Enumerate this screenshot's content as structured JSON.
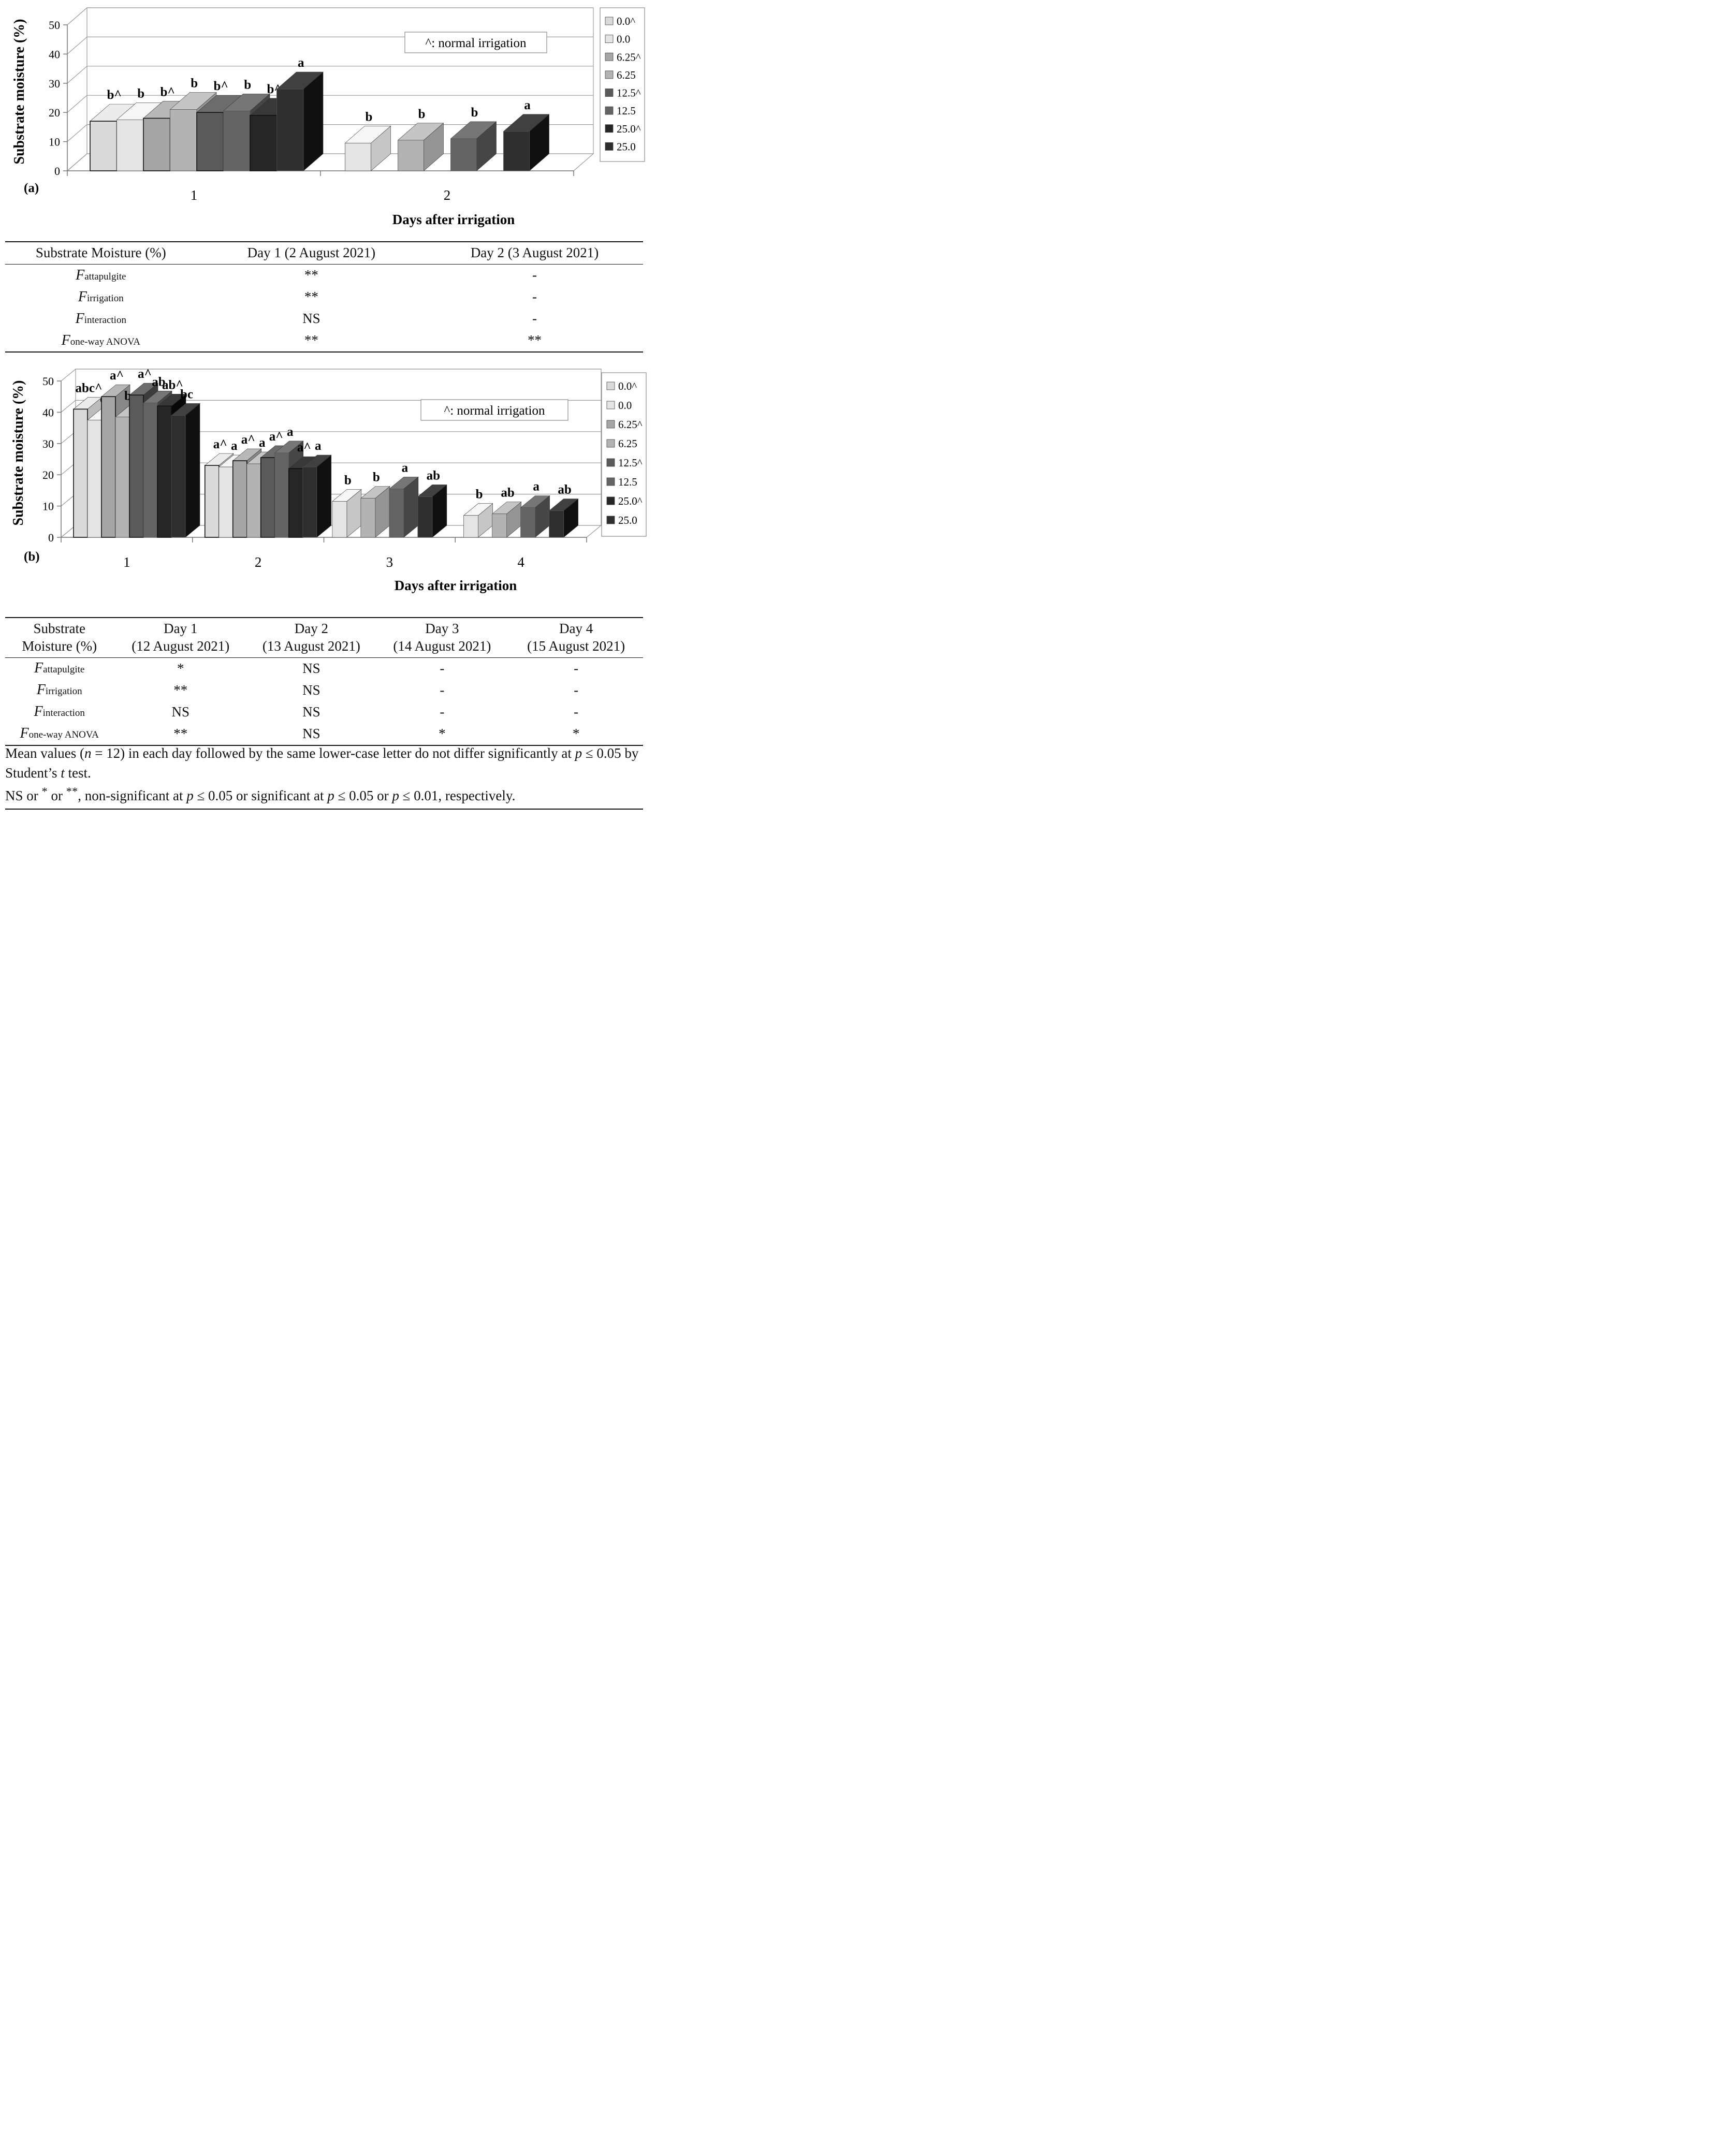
{
  "chart_data": [
    {
      "type": "bar",
      "panel_label": "(a)",
      "xlabel": "Days after irrigation",
      "ylabel": "Substrate moisture (%)",
      "ylim": [
        0,
        50
      ],
      "yticks": [
        "0",
        "10",
        "20",
        "30",
        "40",
        "50"
      ],
      "categories": [
        "1",
        "2"
      ],
      "legend_position": "right",
      "legend": [
        "0.0^",
        "0.0",
        "6.25^",
        "6.25",
        "12.5^",
        "12.5",
        "25.0^",
        "25.0"
      ],
      "annotation": "^: normal irrigation",
      "groups": [
        {
          "day": "1",
          "bars": [
            {
              "series": "0.0^",
              "value": 17,
              "label": "b^"
            },
            {
              "series": "0.0",
              "value": 17.5,
              "label": "b"
            },
            {
              "series": "6.25^",
              "value": 18,
              "label": "b^"
            },
            {
              "series": "6.25",
              "value": 21,
              "label": "b"
            },
            {
              "series": "12.5^",
              "value": 20,
              "label": "b^"
            },
            {
              "series": "12.5",
              "value": 20.5,
              "label": "b"
            },
            {
              "series": "25.0^",
              "value": 19,
              "label": "b^"
            },
            {
              "series": "25.0",
              "value": 28,
              "label": "a"
            }
          ]
        },
        {
          "day": "2",
          "bars": [
            {
              "series": "0.0",
              "value": 9.5,
              "label": "b"
            },
            {
              "series": "6.25",
              "value": 10.5,
              "label": "b"
            },
            {
              "series": "12.5",
              "value": 11,
              "label": "b"
            },
            {
              "series": "25.0",
              "value": 13.5,
              "label": "a"
            }
          ]
        }
      ]
    },
    {
      "type": "bar",
      "panel_label": "(b)",
      "xlabel": "Days after irrigation",
      "ylabel": "Substrate moisture (%)",
      "ylim": [
        0,
        50
      ],
      "yticks": [
        "0",
        "10",
        "20",
        "30",
        "40",
        "50"
      ],
      "categories": [
        "1",
        "2",
        "3",
        "4"
      ],
      "legend_position": "right",
      "legend": [
        "0.0^",
        "0.0",
        "6.25^",
        "6.25",
        "12.5^",
        "12.5",
        "25.0^",
        "25.0"
      ],
      "annotation": "^: normal irrigation",
      "groups": [
        {
          "day": "1",
          "bars": [
            {
              "series": "0.0^",
              "value": 41,
              "label": "abc^"
            },
            {
              "series": "0.0",
              "value": 37.5,
              "label": "c"
            },
            {
              "series": "6.25^",
              "value": 45,
              "label": "a^"
            },
            {
              "series": "6.25",
              "value": 38.5,
              "label": "bc"
            },
            {
              "series": "12.5^",
              "value": 45.5,
              "label": "a^"
            },
            {
              "series": "12.5",
              "value": 43,
              "label": "ab"
            },
            {
              "series": "25.0^",
              "value": 42,
              "label": "ab^"
            },
            {
              "series": "25.0",
              "value": 39,
              "label": "bc"
            }
          ]
        },
        {
          "day": "2",
          "bars": [
            {
              "series": "0.0^",
              "value": 23,
              "label": "a^"
            },
            {
              "series": "0.0",
              "value": 22.5,
              "label": "a"
            },
            {
              "series": "6.25^",
              "value": 24.5,
              "label": "a^"
            },
            {
              "series": "6.25",
              "value": 23.5,
              "label": "a"
            },
            {
              "series": "12.5^",
              "value": 25.5,
              "label": "a^"
            },
            {
              "series": "12.5",
              "value": 27,
              "label": "a"
            },
            {
              "series": "25.0^",
              "value": 22,
              "label": "a^"
            },
            {
              "series": "25.0",
              "value": 22.5,
              "label": "a"
            }
          ]
        },
        {
          "day": "3",
          "bars": [
            {
              "series": "0.0",
              "value": 11.5,
              "label": "b"
            },
            {
              "series": "6.25",
              "value": 12.5,
              "label": "b"
            },
            {
              "series": "12.5",
              "value": 15.5,
              "label": "a"
            },
            {
              "series": "25.0",
              "value": 13,
              "label": "ab"
            }
          ]
        },
        {
          "day": "4",
          "bars": [
            {
              "series": "0.0",
              "value": 7,
              "label": "b"
            },
            {
              "series": "6.25",
              "value": 7.5,
              "label": "ab"
            },
            {
              "series": "12.5",
              "value": 9.5,
              "label": "a"
            },
            {
              "series": "25.0",
              "value": 8.5,
              "label": "ab"
            }
          ]
        }
      ]
    }
  ],
  "series_colors": {
    "0.0^": "#dadada",
    "0.0": "#e4e4e4",
    "6.25^": "#a6a6a6",
    "6.25": "#b3b3b3",
    "12.5^": "#5a5a5a",
    "12.5": "#646464",
    "25.0^": "#262626",
    "25.0": "#2e2e2e"
  },
  "table_a": {
    "header": [
      "Substrate Moisture (%)",
      "Day 1 (2 August 2021)",
      "Day 2 (3 August 2021)"
    ],
    "rows": [
      {
        "f": "F",
        "sub": "attapulgite",
        "cells": [
          "**",
          "-"
        ]
      },
      {
        "f": "F",
        "sub": "irrigation",
        "cells": [
          "**",
          "-"
        ]
      },
      {
        "f": "F",
        "sub": "interaction",
        "cells": [
          "NS",
          "-"
        ]
      },
      {
        "f": "F",
        "sub": "one-way ANOVA",
        "cells": [
          "**",
          "**"
        ]
      }
    ]
  },
  "table_b": {
    "header": [
      [
        "Substrate",
        "Moisture (%)"
      ],
      [
        "Day 1",
        "(12 August 2021)"
      ],
      [
        "Day 2",
        "(13 August 2021)"
      ],
      [
        "Day 3",
        "(14 August 2021)"
      ],
      [
        "Day 4",
        "(15 August 2021)"
      ]
    ],
    "rows": [
      {
        "f": "F",
        "sub": "attapulgite",
        "cells": [
          "*",
          "NS",
          "-",
          "-"
        ]
      },
      {
        "f": "F",
        "sub": "irrigation",
        "cells": [
          "**",
          "NS",
          "-",
          "-"
        ]
      },
      {
        "f": "F",
        "sub": "interaction",
        "cells": [
          "NS",
          "NS",
          "-",
          "-"
        ]
      },
      {
        "f": "F",
        "sub": "one-way ANOVA",
        "cells": [
          "**",
          "NS",
          "*",
          "*"
        ]
      }
    ]
  },
  "notes": {
    "line1": {
      "a": "Mean values (",
      "n": "n",
      "b": " = 12) in each day followed by the same lower-case letter do not differ significantly at ",
      "p": "p",
      "c": " ≤ 0.05 by Student’s ",
      "t": "t",
      "d": " test."
    },
    "line2": {
      "a": "NS or ",
      "s1": "*",
      "b": " or ",
      "s2": "**",
      "c": ", non-significant at ",
      "p1": "p",
      "d": " ≤ 0.05 or significant at ",
      "p2": "p",
      "e": " ≤ 0.05 or ",
      "p3": "p",
      "f": " ≤ 0.01, respectively."
    }
  }
}
